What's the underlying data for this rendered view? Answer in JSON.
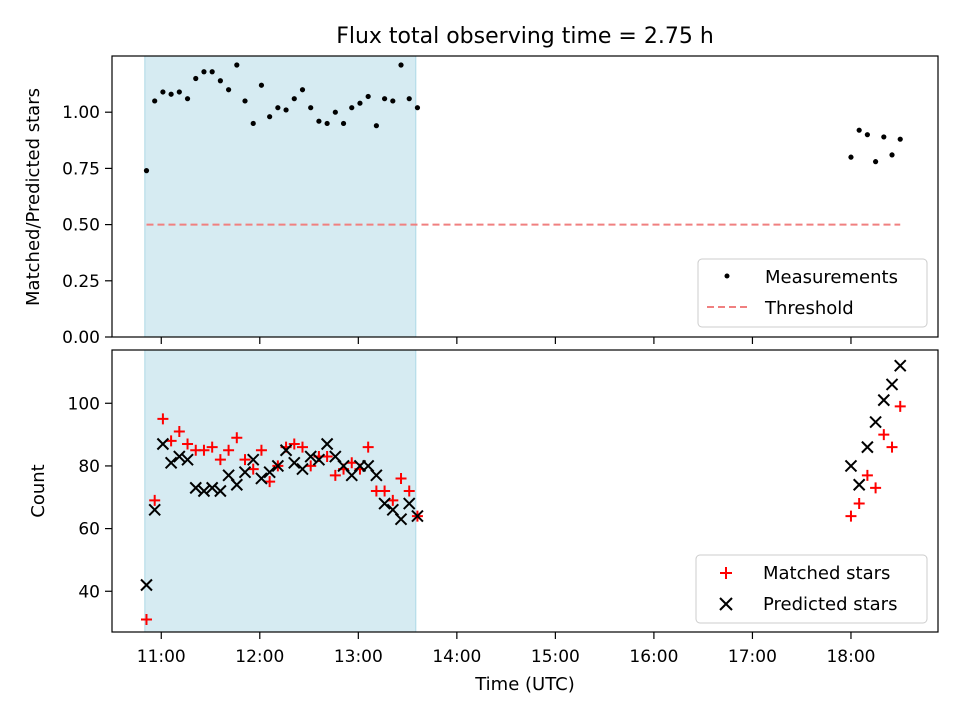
{
  "chart_data": [
    {
      "type": "scatter",
      "title": "Flux total observing time = 2.75 h",
      "xlabel": "",
      "ylabel": "Matched/Predicted stars",
      "xlim": [
        "10:30",
        "18:53"
      ],
      "ylim": [
        0,
        1.25
      ],
      "yticks": [
        0.0,
        0.25,
        0.5,
        0.75,
        1.0
      ],
      "ytick_labels": [
        "0.00",
        "0.25",
        "0.50",
        "0.75",
        "1.00"
      ],
      "shaded_region": {
        "x_start": "10:50",
        "x_end": "13:35",
        "color": "#add8e6"
      },
      "legend_position": "lower right",
      "series": [
        {
          "name": "Measurements",
          "marker": "dot",
          "color": "#000000",
          "x": [
            "10:51",
            "10:56",
            "11:01",
            "11:06",
            "11:11",
            "11:16",
            "11:21",
            "11:26",
            "11:31",
            "11:36",
            "11:41",
            "11:46",
            "11:51",
            "11:56",
            "12:01",
            "12:06",
            "12:11",
            "12:16",
            "12:21",
            "12:26",
            "12:31",
            "12:36",
            "12:41",
            "12:46",
            "12:51",
            "12:56",
            "13:01",
            "13:06",
            "13:11",
            "13:16",
            "13:21",
            "13:26",
            "13:31",
            "13:36",
            "18:00",
            "18:05",
            "18:10",
            "18:15",
            "18:20",
            "18:25",
            "18:30"
          ],
          "y": [
            0.74,
            1.05,
            1.09,
            1.08,
            1.09,
            1.06,
            1.15,
            1.18,
            1.18,
            1.14,
            1.1,
            1.21,
            1.05,
            0.95,
            1.12,
            0.98,
            1.02,
            1.01,
            1.06,
            1.1,
            1.02,
            0.96,
            0.95,
            1.0,
            0.95,
            1.02,
            1.04,
            1.07,
            0.94,
            1.06,
            1.05,
            1.21,
            1.06,
            1.02,
            0.8,
            0.92,
            0.9,
            0.78,
            0.89,
            0.81,
            0.88
          ]
        },
        {
          "name": "Threshold",
          "line_style": "dashed",
          "color": "#f08080",
          "x": [
            "10:51",
            "18:30"
          ],
          "y": [
            0.5,
            0.5
          ]
        }
      ]
    },
    {
      "type": "scatter",
      "title": "",
      "xlabel": "Time (UTC)",
      "ylabel": "Count",
      "xlim": [
        "10:30",
        "18:53"
      ],
      "ylim": [
        27,
        117
      ],
      "xticks": [
        "11:00",
        "12:00",
        "13:00",
        "14:00",
        "15:00",
        "16:00",
        "17:00",
        "18:00"
      ],
      "yticks": [
        40,
        60,
        80,
        100
      ],
      "shaded_region": {
        "x_start": "10:50",
        "x_end": "13:35",
        "color": "#add8e6"
      },
      "legend_position": "lower right",
      "series": [
        {
          "name": "Matched stars",
          "marker": "plus",
          "color": "#ff0000",
          "x": [
            "10:51",
            "10:56",
            "11:01",
            "11:06",
            "11:11",
            "11:16",
            "11:21",
            "11:26",
            "11:31",
            "11:36",
            "11:41",
            "11:46",
            "11:51",
            "11:56",
            "12:01",
            "12:06",
            "12:11",
            "12:16",
            "12:21",
            "12:26",
            "12:31",
            "12:36",
            "12:41",
            "12:46",
            "12:51",
            "12:56",
            "13:01",
            "13:06",
            "13:11",
            "13:16",
            "13:21",
            "13:26",
            "13:31",
            "13:36",
            "18:00",
            "18:05",
            "18:10",
            "18:15",
            "18:20",
            "18:25",
            "18:30"
          ],
          "y": [
            31,
            69,
            95,
            88,
            91,
            87,
            85,
            85,
            86,
            82,
            85,
            89,
            82,
            79,
            85,
            75,
            80,
            86,
            87,
            86,
            80,
            83,
            83,
            77,
            79,
            81,
            79,
            86,
            72,
            72,
            69,
            76,
            72,
            64,
            64,
            68,
            77,
            73,
            90,
            86,
            99
          ]
        },
        {
          "name": "Predicted stars",
          "marker": "x",
          "color": "#000000",
          "x": [
            "10:51",
            "10:56",
            "11:01",
            "11:06",
            "11:11",
            "11:16",
            "11:21",
            "11:26",
            "11:31",
            "11:36",
            "11:41",
            "11:46",
            "11:51",
            "11:56",
            "12:01",
            "12:06",
            "12:11",
            "12:16",
            "12:21",
            "12:26",
            "12:31",
            "12:36",
            "12:41",
            "12:46",
            "12:51",
            "12:56",
            "13:01",
            "13:06",
            "13:11",
            "13:16",
            "13:21",
            "13:26",
            "13:31",
            "13:36",
            "18:00",
            "18:05",
            "18:10",
            "18:15",
            "18:20",
            "18:25",
            "18:30"
          ],
          "y": [
            42,
            66,
            87,
            81,
            83,
            82,
            73,
            72,
            73,
            72,
            77,
            74,
            78,
            82,
            76,
            78,
            80,
            85,
            81,
            79,
            83,
            82,
            87,
            83,
            80,
            77,
            80,
            80,
            77,
            68,
            66,
            63,
            68,
            64,
            80,
            74,
            86,
            94,
            101,
            106,
            112
          ]
        }
      ]
    }
  ]
}
